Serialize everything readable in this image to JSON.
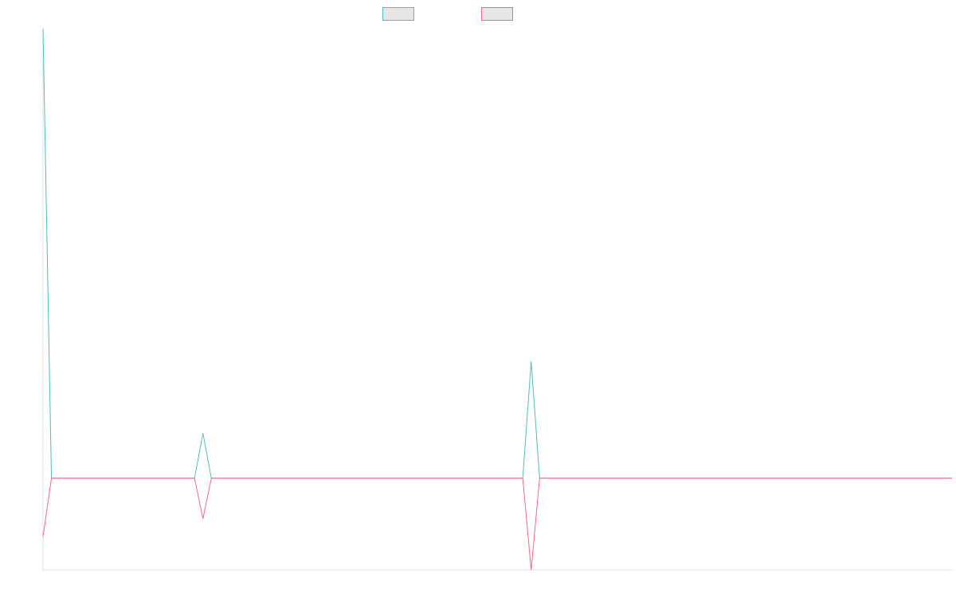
{
  "colors": {
    "series_a": "#4bc0c0",
    "series_b": "#ff6384",
    "axis": "#e0e0e0",
    "swatch_fill": "#e6e6e6"
  },
  "chart_data": {
    "type": "line",
    "x": [
      0,
      1,
      2,
      3,
      4,
      5,
      6,
      7,
      8,
      9,
      10,
      11,
      12,
      13,
      14,
      15,
      16,
      17,
      18,
      19,
      20,
      21,
      22,
      23,
      24,
      25,
      26,
      27,
      28,
      29,
      30,
      31,
      32,
      33,
      34,
      35,
      36,
      37,
      38,
      39,
      40,
      41,
      42,
      43,
      44,
      45,
      46,
      47,
      48,
      49,
      50,
      51,
      52,
      53,
      54,
      55,
      56,
      57,
      58,
      59,
      60,
      61,
      62,
      63,
      64,
      65,
      66,
      67,
      68,
      69,
      70,
      71,
      72,
      73,
      74,
      75,
      76,
      77,
      78,
      79,
      80,
      81,
      82,
      83,
      84,
      85,
      86,
      87,
      88,
      89,
      90,
      91,
      92,
      93,
      94,
      95,
      96,
      97,
      98,
      99,
      100,
      101,
      102,
      103,
      104,
      105,
      106,
      107,
      108
    ],
    "series": [
      {
        "values": [
          100,
          0,
          0,
          0,
          0,
          0,
          0,
          0,
          0,
          0,
          0,
          0,
          0,
          0,
          0,
          0,
          0,
          0,
          0,
          10,
          0,
          0,
          0,
          0,
          0,
          0,
          0,
          0,
          0,
          0,
          0,
          0,
          0,
          0,
          0,
          0,
          0,
          0,
          0,
          0,
          0,
          0,
          0,
          0,
          0,
          0,
          0,
          0,
          0,
          0,
          0,
          0,
          0,
          0,
          0,
          0,
          0,
          0,
          26,
          0,
          0,
          0,
          0,
          0,
          0,
          0,
          0,
          0,
          0,
          0,
          0,
          0,
          0,
          0,
          0,
          0,
          0,
          0,
          0,
          0,
          0,
          0,
          0,
          0,
          0,
          0,
          0,
          0,
          0,
          0,
          0,
          0,
          0,
          0,
          0,
          0,
          0,
          0,
          0,
          0,
          0,
          0,
          0,
          0,
          0,
          0,
          0,
          0,
          0
        ]
      },
      {
        "values": [
          -13,
          0,
          0,
          0,
          0,
          0,
          0,
          0,
          0,
          0,
          0,
          0,
          0,
          0,
          0,
          0,
          0,
          0,
          0,
          -9,
          0,
          0,
          0,
          0,
          0,
          0,
          0,
          0,
          0,
          0,
          0,
          0,
          0,
          0,
          0,
          0,
          0,
          0,
          0,
          0,
          0,
          0,
          0,
          0,
          0,
          0,
          0,
          0,
          0,
          0,
          0,
          0,
          0,
          0,
          0,
          0,
          0,
          0,
          -20.4,
          0,
          0,
          0,
          0,
          0,
          0,
          0,
          0,
          0,
          0,
          0,
          0,
          0,
          0,
          0,
          0,
          0,
          0,
          0,
          0,
          0,
          0,
          0,
          0,
          0,
          0,
          0,
          0,
          0,
          0,
          0,
          0,
          0,
          0,
          0,
          0,
          0,
          0,
          0,
          0,
          0,
          0,
          0,
          0,
          0,
          0,
          0,
          0,
          0,
          0
        ]
      }
    ],
    "ylim": [
      -20.4,
      100
    ],
    "legend_position": "top-center",
    "grid": false
  }
}
